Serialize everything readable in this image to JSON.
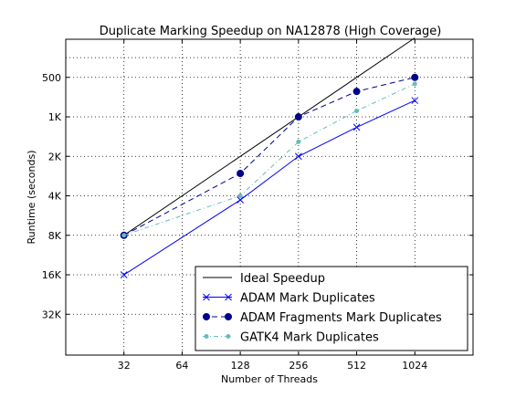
{
  "chart_data": {
    "type": "line",
    "title": "Duplicate Marking Speedup on NA12878 (High Coverage)",
    "xlabel": "Number of Threads",
    "ylabel": "Runtime (seconds)",
    "x_scale": "log2",
    "y_scale": "log2",
    "y_inverted": true,
    "xlim": [
      16,
      2048
    ],
    "ylim": [
      256,
      65536
    ],
    "x_ticks": [
      32,
      64,
      128,
      256,
      512,
      1024
    ],
    "x_tick_labels": [
      "32",
      "64",
      "128",
      "256",
      "512",
      "1024"
    ],
    "y_ticks": [
      500,
      1000,
      2000,
      4000,
      8000,
      16000,
      32000
    ],
    "y_tick_labels": [
      "500",
      "1K",
      "2K",
      "4K",
      "8K",
      "16K",
      "32K"
    ],
    "legend_position": "lower-right",
    "series": [
      {
        "name": "Ideal Speedup",
        "color": "#000000",
        "marker": "none",
        "dash": "solid",
        "x": [
          32,
          1024
        ],
        "y": [
          8000,
          250
        ]
      },
      {
        "name": "ADAM Mark Duplicates",
        "color": "#0000ff",
        "marker": "x",
        "dash": "solid",
        "x": [
          32,
          128,
          256,
          512,
          1024
        ],
        "y": [
          16000,
          4300,
          2000,
          1200,
          750
        ]
      },
      {
        "name": "ADAM Fragments Mark Duplicates",
        "color": "#00008b",
        "marker": "o",
        "dash": "dashed",
        "x": [
          32,
          128,
          256,
          512,
          1024
        ],
        "y": [
          8000,
          2700,
          1000,
          640,
          500
        ]
      },
      {
        "name": "GATK4 Mark Duplicates",
        "color": "#66bbbb",
        "marker": "dot",
        "dash": "dashdot",
        "x": [
          32,
          128,
          256,
          512,
          1024
        ],
        "y": [
          8000,
          4000,
          1550,
          900,
          560
        ]
      }
    ]
  }
}
